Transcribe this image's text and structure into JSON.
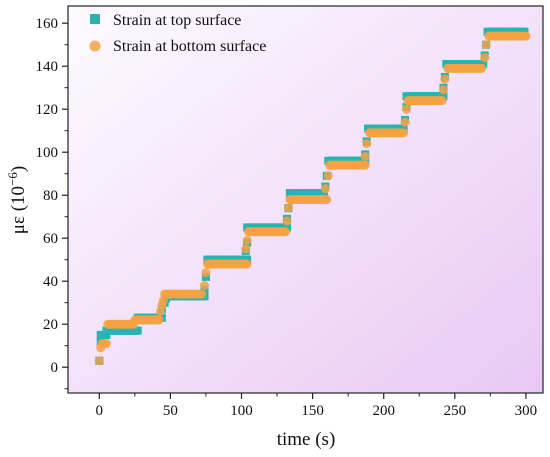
{
  "chart_data": {
    "type": "scatter",
    "title": "",
    "xlabel": "time (s)",
    "ylabel_base": "με (10",
    "ylabel_exp": "−6",
    "ylabel_close": ")",
    "xlim": [
      -22,
      312
    ],
    "ylim": [
      -12,
      168
    ],
    "x_ticks": [
      0,
      50,
      100,
      150,
      200,
      250,
      300
    ],
    "y_ticks": [
      0,
      20,
      40,
      60,
      80,
      100,
      120,
      140,
      160
    ],
    "background_gradient": [
      "#fdfbff",
      "#e9c8f4"
    ],
    "legend_position": "top-left",
    "series": [
      {
        "name": "Strain at top surface",
        "marker": "square",
        "color": "#2ab3b3",
        "plateaus": [
          [
            1,
            5,
            15
          ],
          [
            5,
            27,
            17
          ],
          [
            27,
            44,
            23
          ],
          [
            49,
            74,
            33
          ],
          [
            76,
            104,
            50
          ],
          [
            104,
            132,
            65
          ],
          [
            134,
            158,
            81
          ],
          [
            161,
            187,
            96
          ],
          [
            189,
            214,
            111
          ],
          [
            216,
            242,
            126
          ],
          [
            244,
            270,
            141
          ],
          [
            273,
            299,
            156
          ]
        ],
        "transitions": [
          [
            0,
            3
          ],
          [
            1,
            12
          ],
          [
            44,
            27
          ],
          [
            46,
            30
          ],
          [
            47,
            32
          ],
          [
            74,
            36
          ],
          [
            75,
            42
          ],
          [
            103,
            54
          ],
          [
            104,
            58
          ],
          [
            132,
            69
          ],
          [
            133,
            74
          ],
          [
            159,
            84
          ],
          [
            160,
            89
          ],
          [
            187,
            99
          ],
          [
            188,
            105
          ],
          [
            215,
            115
          ],
          [
            216,
            121
          ],
          [
            242,
            130
          ],
          [
            243,
            135
          ],
          [
            271,
            145
          ],
          [
            272,
            150
          ]
        ]
      },
      {
        "name": "Strain at bottom surface",
        "marker": "circle",
        "color": "#f5a243",
        "plateaus": [
          [
            2,
            5,
            11
          ],
          [
            6,
            24,
            20
          ],
          [
            25,
            42,
            22
          ],
          [
            46,
            70,
            34
          ],
          [
            76,
            104,
            48
          ],
          [
            105,
            131,
            63
          ],
          [
            134,
            160,
            78
          ],
          [
            162,
            187,
            94
          ],
          [
            190,
            214,
            109
          ],
          [
            217,
            241,
            124
          ],
          [
            245,
            269,
            139
          ],
          [
            274,
            300,
            154
          ]
        ],
        "transitions": [
          [
            0,
            3
          ],
          [
            1,
            9
          ],
          [
            43,
            26
          ],
          [
            44,
            29
          ],
          [
            45,
            31
          ],
          [
            72,
            34
          ],
          [
            74,
            38
          ],
          [
            75,
            44
          ],
          [
            103,
            55
          ],
          [
            104,
            59
          ],
          [
            132,
            68
          ],
          [
            133,
            74
          ],
          [
            159,
            83
          ],
          [
            161,
            89
          ],
          [
            187,
            98
          ],
          [
            188,
            104
          ],
          [
            215,
            114
          ],
          [
            216,
            120
          ],
          [
            242,
            129
          ],
          [
            243,
            134
          ],
          [
            271,
            144
          ],
          [
            272,
            150
          ]
        ]
      }
    ]
  }
}
